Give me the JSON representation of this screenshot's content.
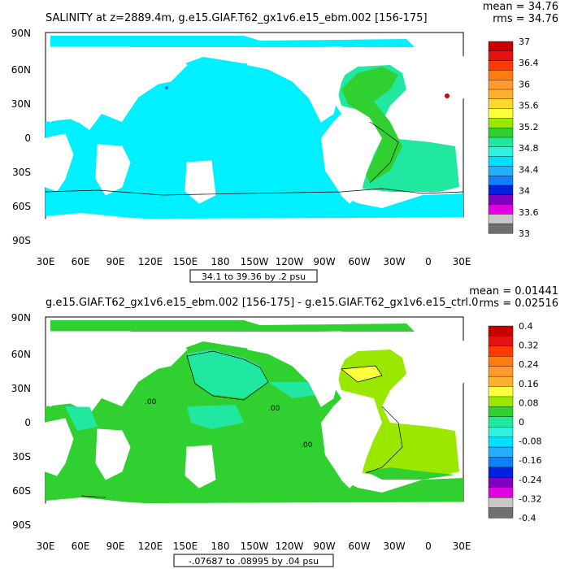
{
  "panels": [
    {
      "title": "SALINITY at z=2889.4m, g.e15.GIAF.T62_gx1v6.e15_ebm.002 [156-175]",
      "mean": "mean = 34.76",
      "rms": "rms = 34.76",
      "range": "34.1 to 39.36 by .2 psu",
      "lat_labels": [
        "90N",
        "60N",
        "30N",
        "0",
        "30S",
        "60S",
        "90S"
      ],
      "lon_labels": [
        "30E",
        "60E",
        "90E",
        "120E",
        "150E",
        "180",
        "150W",
        "120W",
        "90W",
        "60W",
        "30W",
        "0",
        "30E"
      ],
      "colorbar": {
        "labels": [
          "37",
          "36.4",
          "36",
          "35.6",
          "35.2",
          "34.8",
          "34.4",
          "34",
          "33.6",
          "33"
        ],
        "colors": [
          "#c80000",
          "#e81010",
          "#ff3a00",
          "#ff7a10",
          "#ff9a30",
          "#ffb030",
          "#ffd830",
          "#ffff40",
          "#9ae800",
          "#30d030",
          "#20e8a0",
          "#30f0e0",
          "#00e0ff",
          "#20b0ff",
          "#1080ff",
          "#0020e0",
          "#8000c0",
          "#e000e0",
          "#c8c8c8",
          "#707070"
        ]
      },
      "annotations": []
    },
    {
      "title": "g.e15.GIAF.T62_gx1v6.e15_ebm.002 [156-175] - g.e15.GIAF.T62_gx1v6.e15_ctrl.0",
      "mean": "mean = 0.01441",
      "rms": "rms = 0.02516",
      "range": "-.07687 to .08995 by .04 psu",
      "lat_labels": [
        "90N",
        "60N",
        "30N",
        "0",
        "30S",
        "60S",
        "90S"
      ],
      "lon_labels": [
        "30E",
        "60E",
        "90E",
        "120E",
        "150E",
        "180",
        "150W",
        "120W",
        "90W",
        "60W",
        "30W",
        "0",
        "30E"
      ],
      "colorbar": {
        "labels": [
          "0.4",
          "0.32",
          "0.24",
          "0.16",
          "0.08",
          "0",
          "-0.08",
          "-0.16",
          "-0.24",
          "-0.32",
          "-0.4"
        ],
        "colors": [
          "#c80000",
          "#e81010",
          "#ff3a00",
          "#ff7a10",
          "#ff9a30",
          "#ffb030",
          "#ffff40",
          "#9ae800",
          "#30d030",
          "#20e8a0",
          "#30f0e0",
          "#00e0ff",
          "#20b0ff",
          "#1080ff",
          "#0020e0",
          "#8000c0",
          "#e000e0",
          "#c8c8c8",
          "#707070"
        ]
      },
      "annotations": [
        ".00",
        ".00",
        ".00"
      ]
    }
  ]
}
